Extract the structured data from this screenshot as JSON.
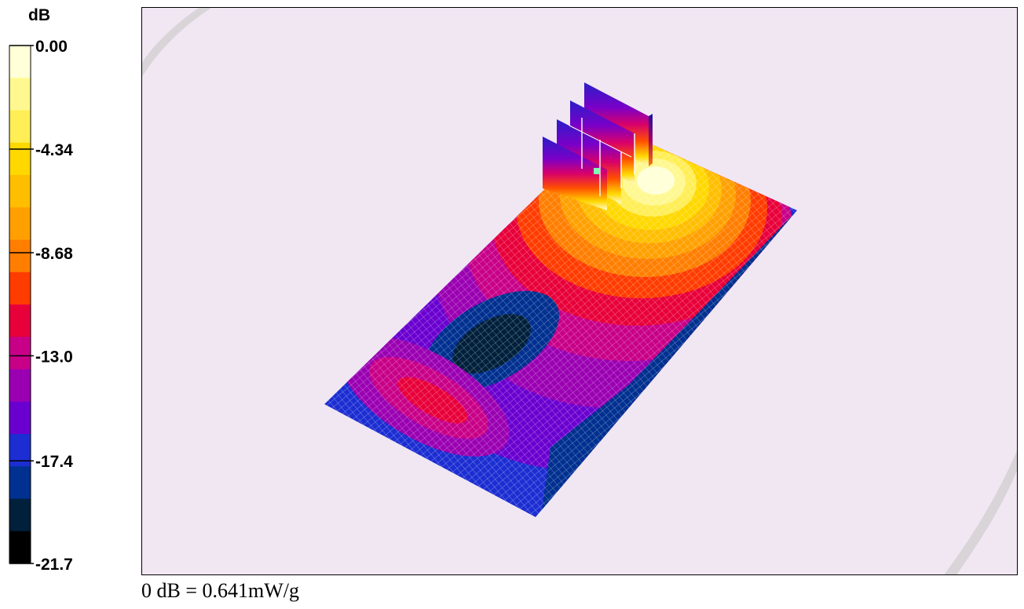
{
  "chart_data": {
    "type": "heatmap",
    "title": "",
    "colorbar": {
      "unit": "dB",
      "tick_labels": [
        "0.00",
        "-4.34",
        "-8.68",
        "-13.0",
        "-17.4",
        "-21.7"
      ],
      "tick_values": [
        0.0,
        -4.34,
        -8.68,
        -13.0,
        -17.4,
        -21.7
      ],
      "range": [
        -21.7,
        0.0
      ],
      "steps": 15,
      "colors": [
        "#ffffd8",
        "#fff890",
        "#ffee55",
        "#ffd800",
        "#ffbe00",
        "#ffa000",
        "#ff7e00",
        "#ff3c00",
        "#e8003a",
        "#c80088",
        "#9a00b2",
        "#6a00d0",
        "#1c2ed2",
        "#003090",
        "#00203c",
        "#000000"
      ]
    },
    "surface": "planar SAR distribution on a tilted rectangular grid with 3D probe cubes",
    "background_color": "#f1e7f3"
  },
  "caption": "0 dB = 0.641mW/g"
}
